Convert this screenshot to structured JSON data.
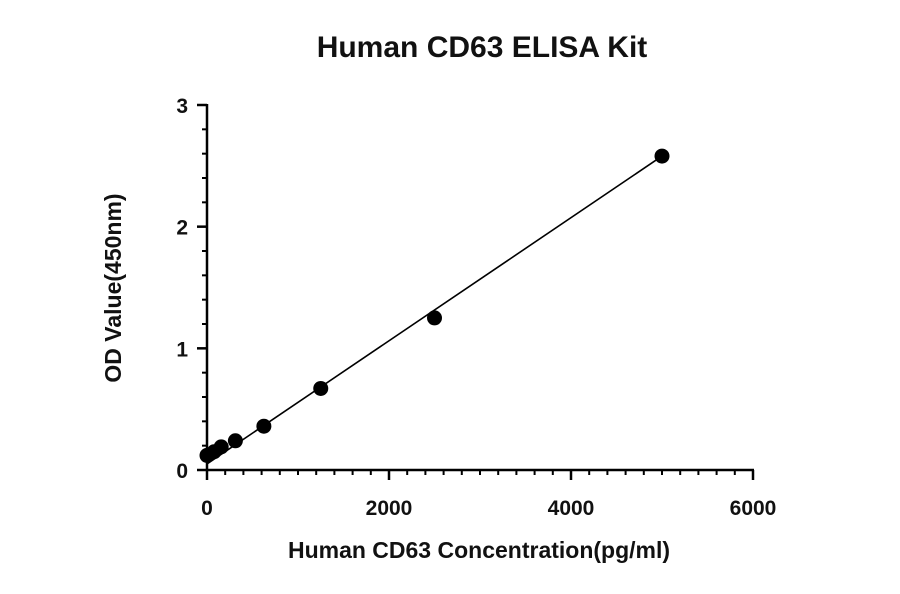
{
  "chart_data": {
    "type": "scatter",
    "title": "Human CD63 ELISA Kit",
    "xlabel": "Human CD63 Concentration(pg/ml)",
    "ylabel": "OD Value(450nm)",
    "xlim": [
      0,
      6000
    ],
    "ylim": [
      0,
      3
    ],
    "xticks": [
      0,
      2000,
      4000,
      6000
    ],
    "yticks": [
      0,
      1,
      2,
      3
    ],
    "x_minor_step": 200,
    "y_minor_step": 0.2,
    "grid": false,
    "legend": "none",
    "series": [
      {
        "x": [
          0,
          78,
          156,
          312,
          625,
          1250,
          2500,
          5000
        ],
        "y": [
          0.12,
          0.15,
          0.19,
          0.24,
          0.36,
          0.67,
          1.25,
          2.58
        ]
      }
    ],
    "fit_line": {
      "x": [
        0,
        5000
      ],
      "y": [
        0.05,
        2.58
      ]
    },
    "colors": {
      "marker": "#000000",
      "line": "#000000",
      "axis": "#000000"
    }
  }
}
